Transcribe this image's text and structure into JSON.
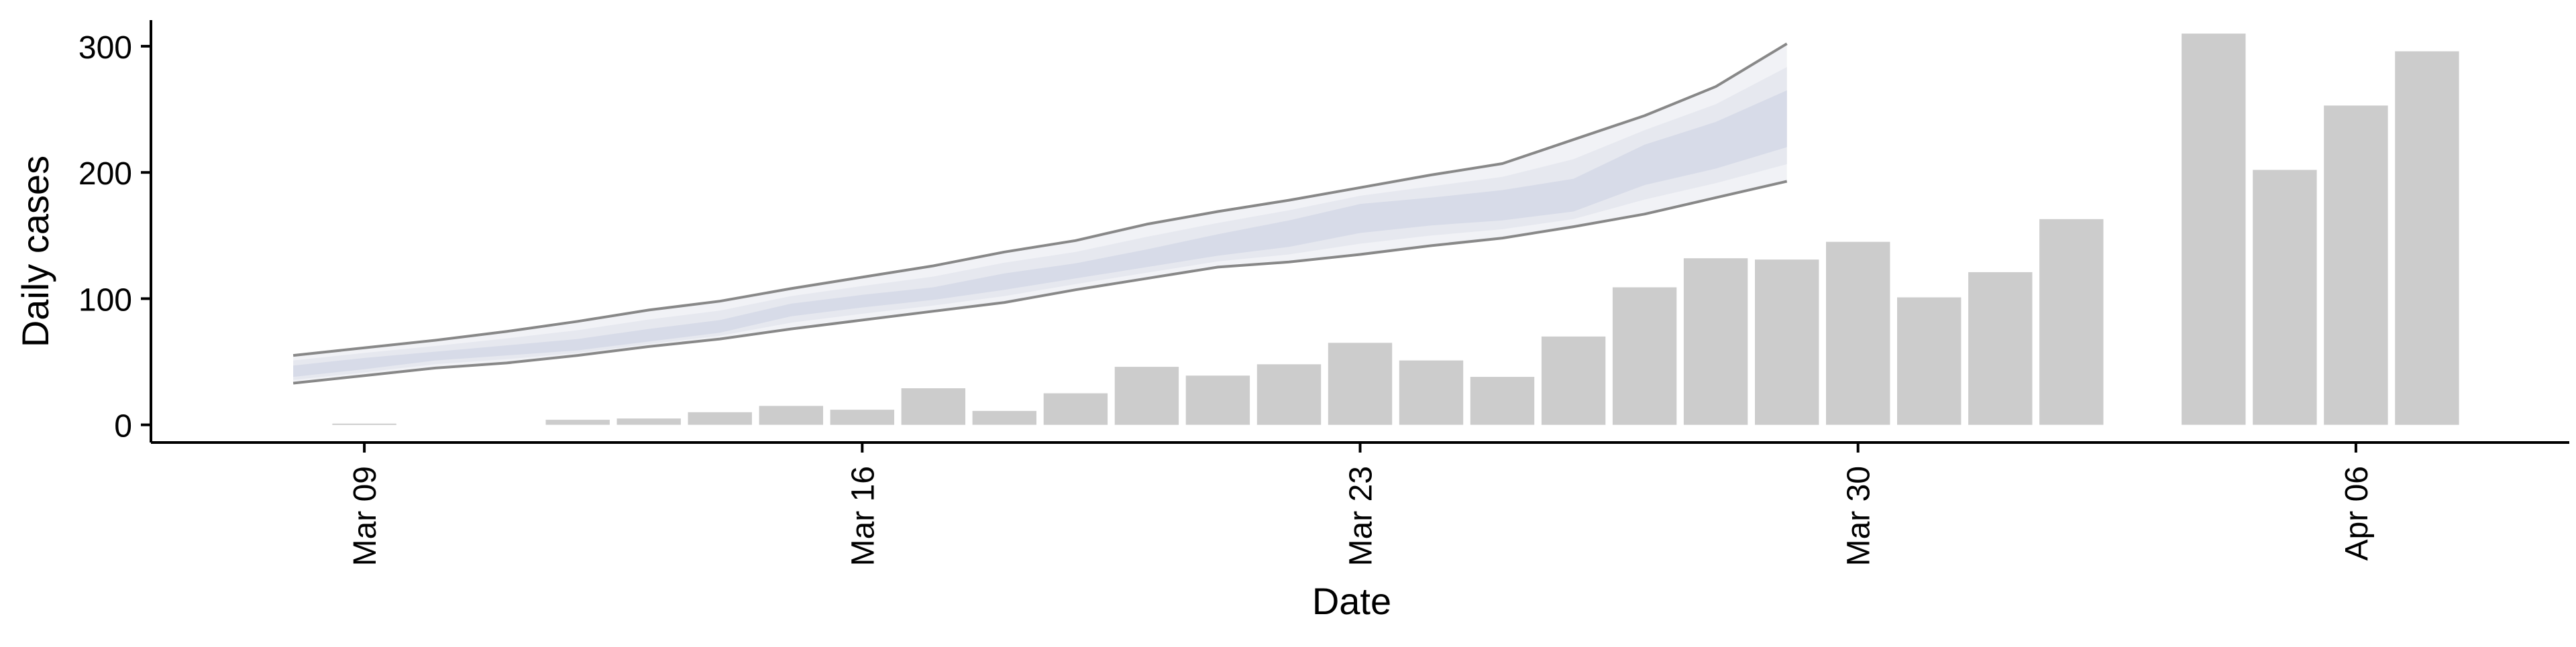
{
  "chart_data": {
    "type": "bar",
    "xlabel": "Date",
    "ylabel": "Daily cases",
    "x_tick_labels": [
      "Mar 09",
      "Mar 16",
      "Mar 23",
      "Mar 30",
      "Apr 06"
    ],
    "x_tick_dates": [
      "2020-03-09",
      "2020-03-16",
      "2020-03-23",
      "2020-03-30",
      "2020-04-06"
    ],
    "y_ticks": [
      0,
      100,
      200,
      300
    ],
    "xlim": [
      "2020-03-06",
      "2020-04-09"
    ],
    "ylim": [
      -14,
      326
    ],
    "grid": false,
    "bar_color": "#cccccc",
    "observed": {
      "dates": [
        "2020-03-09",
        "2020-03-12",
        "2020-03-13",
        "2020-03-14",
        "2020-03-15",
        "2020-03-16",
        "2020-03-17",
        "2020-03-18",
        "2020-03-19",
        "2020-03-20",
        "2020-03-21",
        "2020-03-22",
        "2020-03-23",
        "2020-03-24",
        "2020-03-25",
        "2020-03-26",
        "2020-03-27",
        "2020-03-28",
        "2020-03-29",
        "2020-03-30",
        "2020-03-31",
        "2020-04-01",
        "2020-04-02",
        "2020-04-04",
        "2020-04-05",
        "2020-04-06",
        "2020-04-07"
      ],
      "values": [
        1,
        4,
        5,
        10,
        15,
        12,
        29,
        11,
        25,
        46,
        39,
        48,
        65,
        51,
        38,
        70,
        109,
        132,
        131,
        145,
        101,
        121,
        163,
        310,
        202,
        253,
        296
      ]
    },
    "forecast": {
      "dates": [
        "2020-03-08",
        "2020-03-09",
        "2020-03-10",
        "2020-03-11",
        "2020-03-12",
        "2020-03-13",
        "2020-03-14",
        "2020-03-15",
        "2020-03-16",
        "2020-03-17",
        "2020-03-18",
        "2020-03-19",
        "2020-03-20",
        "2020-03-21",
        "2020-03-22",
        "2020-03-23",
        "2020-03-24",
        "2020-03-25",
        "2020-03-26",
        "2020-03-27",
        "2020-03-28",
        "2020-03-29"
      ],
      "outer_upper": [
        55,
        61,
        67,
        74,
        82,
        91,
        98,
        108,
        117,
        126,
        137,
        146,
        159,
        169,
        178,
        188,
        198,
        207,
        226,
        245,
        268,
        302
      ],
      "outer_lower": [
        33,
        39,
        45,
        49,
        55,
        62,
        68,
        76,
        83,
        90,
        97,
        107,
        116,
        125,
        129,
        135,
        142,
        148,
        157,
        167,
        180,
        193
      ],
      "inner_upper": [
        47,
        53,
        58,
        63,
        68,
        76,
        83,
        96,
        103,
        109,
        120,
        128,
        139,
        151,
        162,
        175,
        180,
        186,
        195,
        222,
        240,
        265
      ],
      "inner_lower": [
        38,
        44,
        51,
        55,
        59,
        66,
        73,
        86,
        93,
        99,
        107,
        116,
        125,
        134,
        141,
        152,
        158,
        162,
        169,
        190,
        203,
        220
      ],
      "colors": {
        "outer_band": "#f1f2f6",
        "inner_band": "#d7dbe8",
        "middle_band": "#e6e8ef",
        "edge_line": "#888888"
      }
    }
  }
}
